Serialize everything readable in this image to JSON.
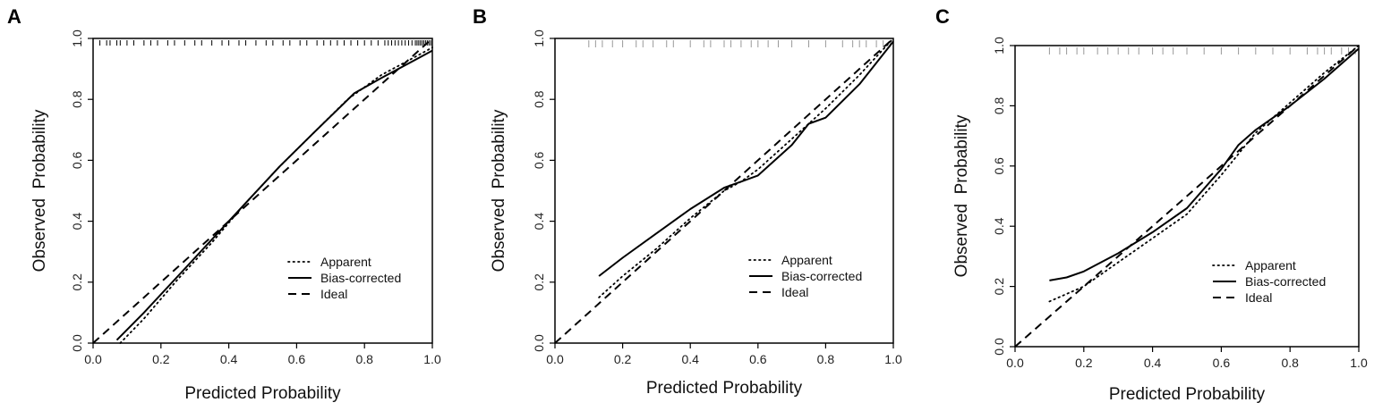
{
  "chart_data": [
    {
      "type": "line",
      "panel_label": "A",
      "xlabel": "Predicted Probability",
      "ylabel": "Observed  Probability",
      "xlim": [
        0,
        1
      ],
      "ylim": [
        0,
        1
      ],
      "x_ticks": [
        "0.0",
        "0.2",
        "0.4",
        "0.6",
        "0.8",
        "1.0"
      ],
      "y_ticks": [
        "0.0",
        "0.2",
        "0.4",
        "0.6",
        "0.8",
        "1.0"
      ],
      "legend": [
        "Apparent",
        "Bias-corrected",
        "Ideal"
      ],
      "legend_position": "bottom-right",
      "rug": [
        0.02,
        0.04,
        0.05,
        0.07,
        0.08,
        0.1,
        0.12,
        0.15,
        0.17,
        0.19,
        0.22,
        0.24,
        0.27,
        0.3,
        0.32,
        0.35,
        0.38,
        0.4,
        0.43,
        0.45,
        0.48,
        0.51,
        0.53,
        0.56,
        0.58,
        0.61,
        0.63,
        0.66,
        0.68,
        0.7,
        0.72,
        0.74,
        0.76,
        0.78,
        0.8,
        0.82,
        0.84,
        0.86,
        0.87,
        0.88,
        0.89,
        0.9,
        0.91,
        0.92,
        0.93,
        0.94,
        0.95,
        0.955,
        0.96,
        0.965,
        0.97,
        0.975,
        0.98,
        0.985,
        0.99,
        0.995
      ],
      "series": [
        {
          "name": "Apparent",
          "style": "dotted",
          "x": [
            0.08,
            0.15,
            0.25,
            0.35,
            0.45,
            0.55,
            0.65,
            0.75,
            0.85,
            0.95,
            1.0
          ],
          "y": [
            0.0,
            0.08,
            0.21,
            0.33,
            0.46,
            0.58,
            0.69,
            0.8,
            0.88,
            0.94,
            0.97
          ]
        },
        {
          "name": "Bias-corrected",
          "style": "solid",
          "x": [
            0.07,
            0.15,
            0.25,
            0.35,
            0.45,
            0.55,
            0.65,
            0.77,
            0.85,
            0.95,
            1.0
          ],
          "y": [
            0.01,
            0.1,
            0.22,
            0.34,
            0.46,
            0.58,
            0.69,
            0.82,
            0.87,
            0.93,
            0.96
          ]
        },
        {
          "name": "Ideal",
          "style": "dashed",
          "x": [
            0,
            1
          ],
          "y": [
            0,
            1
          ]
        }
      ]
    },
    {
      "type": "line",
      "panel_label": "B",
      "xlabel": "Predicted Probability",
      "ylabel": "Observed  Probability",
      "xlim": [
        0,
        1
      ],
      "ylim": [
        0,
        1
      ],
      "x_ticks": [
        "0.0",
        "0.2",
        "0.4",
        "0.6",
        "0.8",
        "1.0"
      ],
      "y_ticks": [
        "0.0",
        "0.2",
        "0.4",
        "0.6",
        "0.8",
        "1.0"
      ],
      "legend": [
        "Apparent",
        "Bias-corrected",
        "Ideal"
      ],
      "legend_position": "bottom-right",
      "rug": [
        0.1,
        0.12,
        0.14,
        0.17,
        0.2,
        0.24,
        0.26,
        0.29,
        0.33,
        0.35,
        0.4,
        0.44,
        0.46,
        0.5,
        0.52,
        0.55,
        0.58,
        0.6,
        0.63,
        0.66,
        0.7,
        0.75,
        0.8,
        0.85,
        0.88,
        0.9,
        0.92,
        0.95,
        0.97,
        0.99
      ],
      "series": [
        {
          "name": "Apparent",
          "style": "dotted",
          "x": [
            0.13,
            0.2,
            0.3,
            0.4,
            0.5,
            0.55,
            0.6,
            0.7,
            0.8,
            0.9,
            1.0
          ],
          "y": [
            0.15,
            0.22,
            0.31,
            0.41,
            0.5,
            0.53,
            0.57,
            0.67,
            0.77,
            0.88,
            1.0
          ]
        },
        {
          "name": "Bias-corrected",
          "style": "solid",
          "x": [
            0.13,
            0.2,
            0.3,
            0.4,
            0.5,
            0.55,
            0.6,
            0.7,
            0.75,
            0.8,
            0.9,
            1.0
          ],
          "y": [
            0.22,
            0.28,
            0.36,
            0.44,
            0.51,
            0.53,
            0.55,
            0.65,
            0.72,
            0.74,
            0.85,
            0.99
          ]
        },
        {
          "name": "Ideal",
          "style": "dashed",
          "x": [
            0,
            1
          ],
          "y": [
            0,
            1
          ]
        }
      ]
    },
    {
      "type": "line",
      "panel_label": "C",
      "xlabel": "Predicted Probability",
      "ylabel": "Observed  Probability",
      "xlim": [
        0,
        1
      ],
      "ylim": [
        0,
        1
      ],
      "x_ticks": [
        "0.0",
        "0.2",
        "0.4",
        "0.6",
        "0.8",
        "1.0"
      ],
      "y_ticks": [
        "0.0",
        "0.2",
        "0.4",
        "0.6",
        "0.8",
        "1.0"
      ],
      "legend": [
        "Apparent",
        "Bias-corrected",
        "Ideal"
      ],
      "legend_position": "bottom-right",
      "rug": [
        0.1,
        0.13,
        0.15,
        0.18,
        0.2,
        0.24,
        0.27,
        0.3,
        0.33,
        0.36,
        0.4,
        0.43,
        0.46,
        0.5,
        0.55,
        0.6,
        0.65,
        0.7,
        0.75,
        0.8,
        0.85,
        0.88,
        0.9,
        0.92,
        0.95,
        0.97,
        0.99
      ],
      "series": [
        {
          "name": "Apparent",
          "style": "dotted",
          "x": [
            0.1,
            0.2,
            0.3,
            0.4,
            0.5,
            0.6,
            0.7,
            0.8,
            0.9,
            1.0
          ],
          "y": [
            0.15,
            0.2,
            0.28,
            0.36,
            0.44,
            0.57,
            0.71,
            0.81,
            0.91,
            1.0
          ]
        },
        {
          "name": "Bias-corrected",
          "style": "solid",
          "x": [
            0.1,
            0.15,
            0.2,
            0.3,
            0.4,
            0.5,
            0.6,
            0.65,
            0.7,
            0.8,
            0.9,
            1.0
          ],
          "y": [
            0.22,
            0.23,
            0.25,
            0.31,
            0.38,
            0.46,
            0.59,
            0.67,
            0.72,
            0.8,
            0.89,
            0.99
          ]
        },
        {
          "name": "Ideal",
          "style": "dashed",
          "x": [
            0,
            1
          ],
          "y": [
            0,
            1
          ]
        }
      ]
    }
  ]
}
